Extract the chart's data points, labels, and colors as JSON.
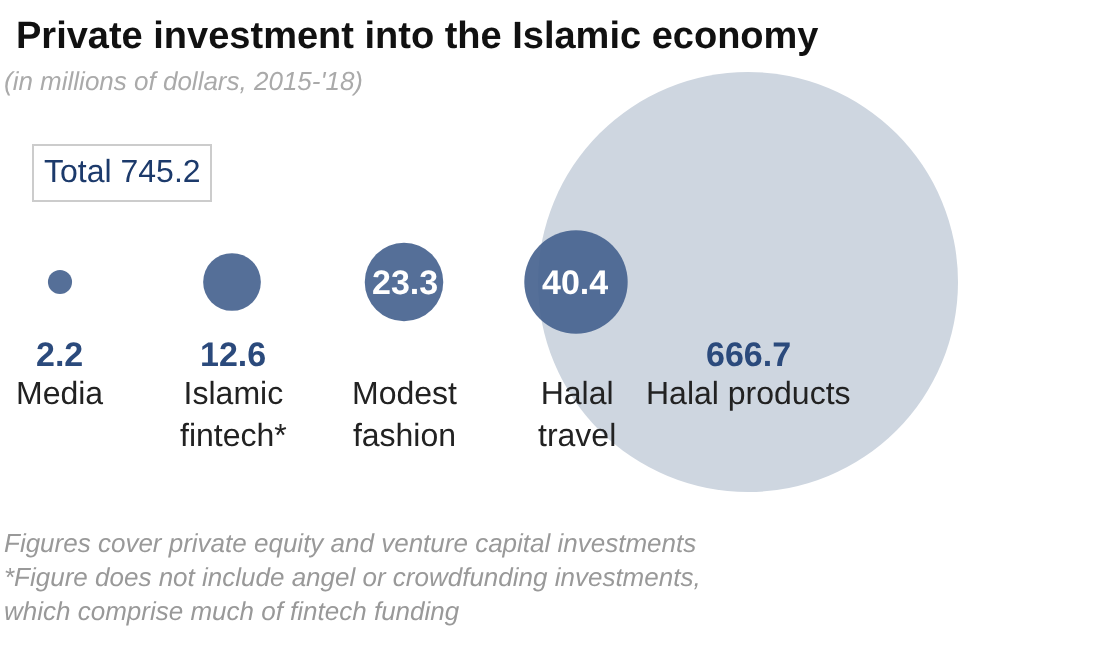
{
  "chart_data": {
    "type": "other",
    "title": "Private investment into the Islamic economy",
    "subtitle": "(in millions of dollars, 2015-'18)",
    "categories": [
      "Media",
      "Islamic fintech*",
      "Modest fashion",
      "Halal travel",
      "Halal products"
    ],
    "values": [
      2.2,
      12.6,
      23.3,
      40.4,
      666.7
    ],
    "data_labels": true,
    "colors": [
      "#46638f",
      "#46638f",
      "#46638f",
      "#46638f",
      "#ced6e0"
    ],
    "annotations": [
      "Total 745.2",
      "Figures cover private equity and venture capital investments",
      "*Figure does not include angel or crowdfunding investments, which comprise much of fintech funding"
    ]
  }
}
